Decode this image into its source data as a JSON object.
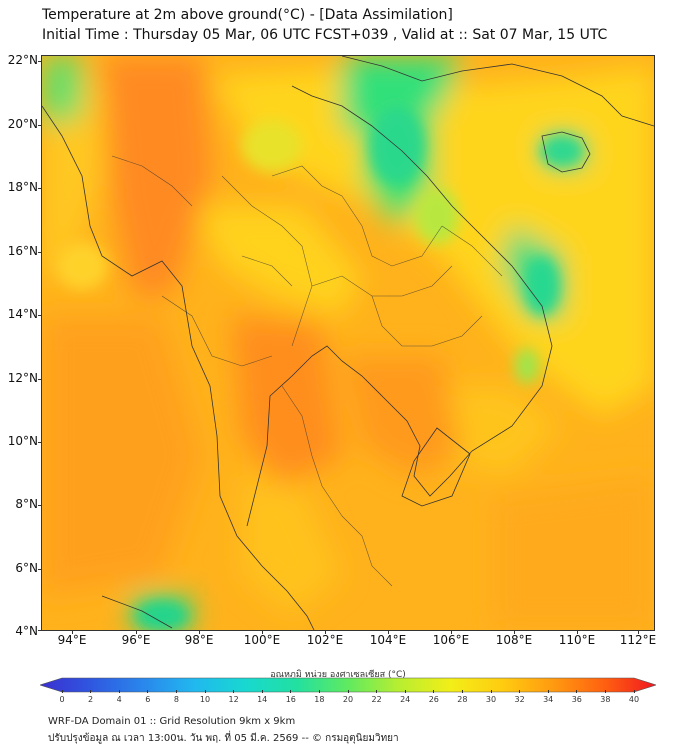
{
  "header": {
    "title_line1": "Temperature at 2m above ground(°C) - [Data Assimilation]",
    "title_line2": "Initial Time : Thursday 05 Mar, 06 UTC FCST+039 , Valid at :: Sat 07 Mar, 15 UTC"
  },
  "map": {
    "lat_labels": [
      "22°N",
      "20°N",
      "18°N",
      "16°N",
      "14°N",
      "12°N",
      "10°N",
      "8°N",
      "6°N",
      "4°N"
    ],
    "lon_labels": [
      "94°E",
      "96°E",
      "98°E",
      "100°E",
      "102°E",
      "104°E",
      "106°E",
      "108°E",
      "110°E",
      "112°E"
    ],
    "lat_range": [
      4,
      22.2
    ],
    "lon_range": [
      93,
      112.4
    ],
    "field_palette": {
      "cool": "#20d890",
      "mild": "#b6e83a",
      "warm": "#ffd21a",
      "hot": "#ffa61c",
      "hotter": "#ff8c1e"
    },
    "border_color": "#333333"
  },
  "colorbar": {
    "title": "อุณหภูมิ หน่วย องศาเซลเซียส (°C)",
    "tick_labels": [
      "0",
      "2",
      "4",
      "6",
      "8",
      "10",
      "12",
      "14",
      "16",
      "18",
      "20",
      "22",
      "24",
      "26",
      "28",
      "30",
      "32",
      "34",
      "36",
      "38",
      "40"
    ],
    "range": [
      0,
      40
    ],
    "colors": [
      "#3b2fd0",
      "#2f57e0",
      "#2a86ec",
      "#21b8ef",
      "#18d8d0",
      "#22e0a0",
      "#60ea60",
      "#b8ee30",
      "#f2ee18",
      "#ffcc10",
      "#ff9a10",
      "#ff6010",
      "#f01820"
    ]
  },
  "footer": {
    "line1": "WRF-DA Domain 01 :: Grid Resolution 9km x 9km",
    "line2": "ปรับปรุงข้อมูล ณ เวลา 13:00น. วัน พฤ. ที่ 05 มี.ค. 2569 -- © กรมอุตุนิยมวิทยา"
  }
}
